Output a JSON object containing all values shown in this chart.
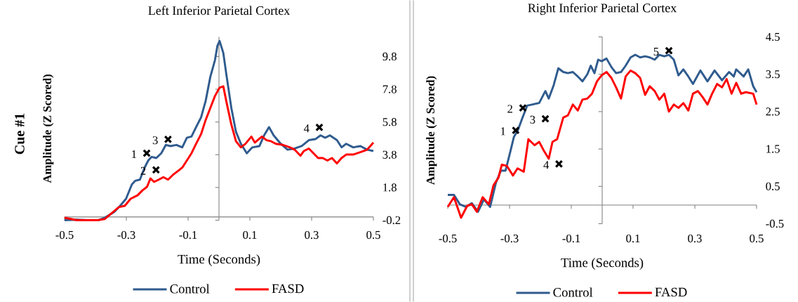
{
  "chart_data": [
    {
      "type": "line",
      "title": "Left Inferior Parietal Cortex",
      "xlabel": "Time (Seconds)",
      "ylabel": "Amplitude (Z Scored)",
      "xlim": [
        -0.5,
        0.5
      ],
      "ylim": [
        -0.2,
        11.0
      ],
      "xticks": [
        -0.5,
        -0.3,
        -0.1,
        0.1,
        0.3,
        0.5
      ],
      "yticks": [
        -0.2,
        1.8,
        3.8,
        5.8,
        7.8,
        9.8
      ],
      "legend": "bottom",
      "annotations": [
        "Cue #1",
        {
          "text": "1",
          "x": -0.234,
          "y": 3.89
        },
        {
          "text": "2",
          "x": -0.204,
          "y": 2.87
        },
        {
          "text": "3",
          "x": -0.165,
          "y": 4.74
        },
        {
          "text": "4",
          "x": 0.325,
          "y": 5.47
        }
      ],
      "series": [
        {
          "name": "Control",
          "color": "#2f5b8e",
          "x": [
            -0.5,
            -0.46,
            -0.423,
            -0.392,
            -0.37,
            -0.339,
            -0.32,
            -0.301,
            -0.282,
            -0.271,
            -0.256,
            -0.241,
            -0.229,
            -0.218,
            -0.203,
            -0.187,
            -0.172,
            -0.157,
            -0.138,
            -0.119,
            -0.104,
            -0.089,
            -0.074,
            -0.058,
            -0.043,
            -0.028,
            -0.013,
            -0.005,
            0.002,
            0.014,
            0.025,
            0.04,
            0.055,
            0.071,
            0.09,
            0.108,
            0.131,
            0.146,
            0.162,
            0.177,
            0.2,
            0.222,
            0.245,
            0.268,
            0.291,
            0.313,
            0.329,
            0.344,
            0.359,
            0.382,
            0.397,
            0.412,
            0.435,
            0.458,
            0.48,
            0.5
          ],
          "values": [
            -0.2,
            -0.17,
            -0.2,
            -0.2,
            -0.05,
            0.31,
            0.68,
            1.11,
            1.99,
            2.21,
            2.28,
            3.01,
            3.45,
            3.67,
            3.6,
            3.89,
            4.4,
            4.33,
            4.4,
            4.25,
            4.84,
            4.91,
            5.49,
            6.08,
            7.1,
            8.56,
            9.58,
            10.46,
            10.75,
            10.02,
            8.56,
            6.66,
            5.2,
            4.47,
            3.89,
            4.25,
            4.33,
            4.98,
            5.49,
            4.98,
            4.47,
            4.11,
            4.18,
            4.33,
            4.69,
            4.76,
            4.98,
            4.84,
            4.98,
            4.69,
            4.25,
            4.47,
            4.25,
            4.33,
            4.11,
            4.03
          ]
        },
        {
          "name": "FASD",
          "color": "#ff0000",
          "x": [
            -0.5,
            -0.46,
            -0.423,
            -0.392,
            -0.37,
            -0.347,
            -0.324,
            -0.305,
            -0.286,
            -0.263,
            -0.248,
            -0.233,
            -0.222,
            -0.21,
            -0.195,
            -0.18,
            -0.165,
            -0.149,
            -0.134,
            -0.119,
            -0.104,
            -0.089,
            -0.074,
            -0.058,
            -0.043,
            -0.028,
            -0.013,
            0.002,
            0.014,
            0.025,
            0.04,
            0.055,
            0.071,
            0.086,
            0.105,
            0.116,
            0.139,
            0.154,
            0.169,
            0.184,
            0.207,
            0.23,
            0.245,
            0.264,
            0.275,
            0.291,
            0.306,
            0.321,
            0.336,
            0.351,
            0.366,
            0.382,
            0.397,
            0.412,
            0.435,
            0.458,
            0.48,
            0.5
          ],
          "values": [
            -0.05,
            -0.2,
            -0.2,
            -0.2,
            -0.13,
            0.24,
            0.6,
            0.68,
            1.11,
            1.33,
            1.62,
            1.84,
            2.35,
            2.14,
            2.28,
            2.43,
            2.28,
            2.57,
            2.79,
            3.01,
            3.45,
            3.89,
            4.47,
            5.06,
            5.93,
            6.66,
            7.39,
            7.9,
            7.98,
            6.95,
            5.64,
            4.62,
            4.25,
            4.47,
            4.91,
            4.54,
            4.91,
            4.69,
            4.62,
            4.47,
            4.4,
            4.25,
            4.11,
            3.74,
            4.03,
            4.18,
            3.89,
            3.6,
            3.6,
            3.45,
            3.6,
            3.27,
            3.6,
            3.81,
            3.81,
            3.96,
            4.11,
            4.54
          ]
        },
        {
          "type": "scatter",
          "marker": "cross",
          "color": "#000000",
          "x": [
            -0.234,
            -0.204,
            -0.165,
            0.325
          ],
          "values": [
            3.89,
            2.87,
            4.74,
            5.47
          ]
        }
      ]
    },
    {
      "type": "line",
      "title": "Right Inferior Parietal Cortex",
      "xlabel": "Time (Seconds)",
      "ylabel": "Amplitude (Z Scored)",
      "xlim": [
        -0.5,
        0.5
      ],
      "ylim": [
        -0.5,
        4.5
      ],
      "xticks": [
        -0.5,
        -0.3,
        -0.1,
        0.1,
        0.3,
        0.5
      ],
      "yticks": [
        -0.5,
        0.5,
        1.5,
        2.5,
        3.5,
        4.5
      ],
      "legend": "bottom",
      "annotations": [
        {
          "text": "1",
          "x": -0.28,
          "y": 2.0
        },
        {
          "text": "2",
          "x": -0.257,
          "y": 2.6
        },
        {
          "text": "3",
          "x": -0.184,
          "y": 2.31
        },
        {
          "text": "4",
          "x": -0.14,
          "y": 1.1
        },
        {
          "text": "5",
          "x": 0.216,
          "y": 4.13
        }
      ],
      "series": [
        {
          "name": "Control",
          "color": "#2f5b8e",
          "x": [
            -0.5,
            -0.48,
            -0.461,
            -0.441,
            -0.422,
            -0.402,
            -0.383,
            -0.363,
            -0.344,
            -0.328,
            -0.313,
            -0.301,
            -0.286,
            -0.274,
            -0.258,
            -0.243,
            -0.227,
            -0.204,
            -0.184,
            -0.173,
            -0.157,
            -0.142,
            -0.126,
            -0.111,
            -0.095,
            -0.079,
            -0.064,
            -0.048,
            -0.037,
            -0.025,
            -0.013,
            -0.002,
            0.014,
            0.03,
            0.045,
            0.061,
            0.076,
            0.092,
            0.107,
            0.123,
            0.139,
            0.154,
            0.17,
            0.185,
            0.201,
            0.216,
            0.232,
            0.247,
            0.263,
            0.279,
            0.294,
            0.318,
            0.341,
            0.364,
            0.388,
            0.411,
            0.426,
            0.434,
            0.458,
            0.473,
            0.489,
            0.5
          ],
          "values": [
            0.27,
            0.27,
            0.02,
            -0.05,
            0.05,
            -0.18,
            0.15,
            -0.05,
            0.6,
            0.92,
            0.92,
            1.31,
            1.82,
            1.98,
            2.34,
            2.66,
            2.69,
            2.73,
            3.05,
            2.85,
            3.21,
            3.66,
            3.56,
            3.53,
            3.56,
            3.44,
            3.31,
            3.5,
            3.73,
            3.53,
            3.89,
            3.85,
            3.92,
            3.69,
            3.53,
            3.56,
            3.73,
            3.95,
            4.02,
            3.95,
            3.98,
            3.95,
            3.89,
            4.02,
            3.98,
            4.02,
            3.89,
            3.47,
            3.63,
            3.44,
            3.24,
            3.6,
            3.31,
            3.6,
            3.34,
            3.56,
            3.44,
            3.63,
            3.44,
            3.63,
            3.18,
            3.02
          ]
        },
        {
          "name": "FASD",
          "color": "#ff0000",
          "x": [
            -0.5,
            -0.48,
            -0.457,
            -0.437,
            -0.422,
            -0.406,
            -0.387,
            -0.367,
            -0.352,
            -0.336,
            -0.325,
            -0.309,
            -0.289,
            -0.274,
            -0.254,
            -0.239,
            -0.219,
            -0.204,
            -0.188,
            -0.173,
            -0.161,
            -0.146,
            -0.126,
            -0.111,
            -0.095,
            -0.079,
            -0.064,
            -0.048,
            -0.033,
            -0.017,
            -0.002,
            0.014,
            0.03,
            0.045,
            0.061,
            0.076,
            0.092,
            0.107,
            0.123,
            0.139,
            0.154,
            0.17,
            0.185,
            0.201,
            0.216,
            0.232,
            0.247,
            0.263,
            0.279,
            0.294,
            0.31,
            0.325,
            0.341,
            0.356,
            0.372,
            0.388,
            0.403,
            0.419,
            0.434,
            0.45,
            0.465,
            0.489,
            0.5
          ],
          "values": [
            -0.05,
            0.21,
            -0.34,
            -0.02,
            0.02,
            -0.18,
            0.21,
            0.02,
            0.53,
            0.73,
            1.08,
            1.05,
            0.79,
            0.98,
            0.89,
            1.76,
            1.6,
            1.69,
            1.44,
            1.24,
            1.69,
            1.76,
            2.34,
            2.4,
            2.69,
            2.53,
            2.82,
            2.85,
            2.98,
            3.31,
            3.47,
            3.56,
            3.4,
            3.15,
            2.85,
            3.44,
            3.6,
            3.53,
            3.4,
            2.95,
            3.18,
            3.05,
            2.82,
            2.98,
            2.5,
            2.69,
            2.6,
            2.73,
            2.53,
            2.98,
            3.05,
            2.89,
            2.69,
            2.98,
            3.24,
            3.15,
            3.37,
            2.98,
            3.27,
            2.98,
            3.02,
            2.98,
            2.69
          ]
        },
        {
          "type": "scatter",
          "marker": "cross",
          "color": "#000000",
          "x": [
            -0.28,
            -0.257,
            -0.184,
            -0.14,
            0.216
          ],
          "values": [
            2.0,
            2.6,
            2.31,
            1.1,
            4.13
          ]
        }
      ]
    }
  ]
}
